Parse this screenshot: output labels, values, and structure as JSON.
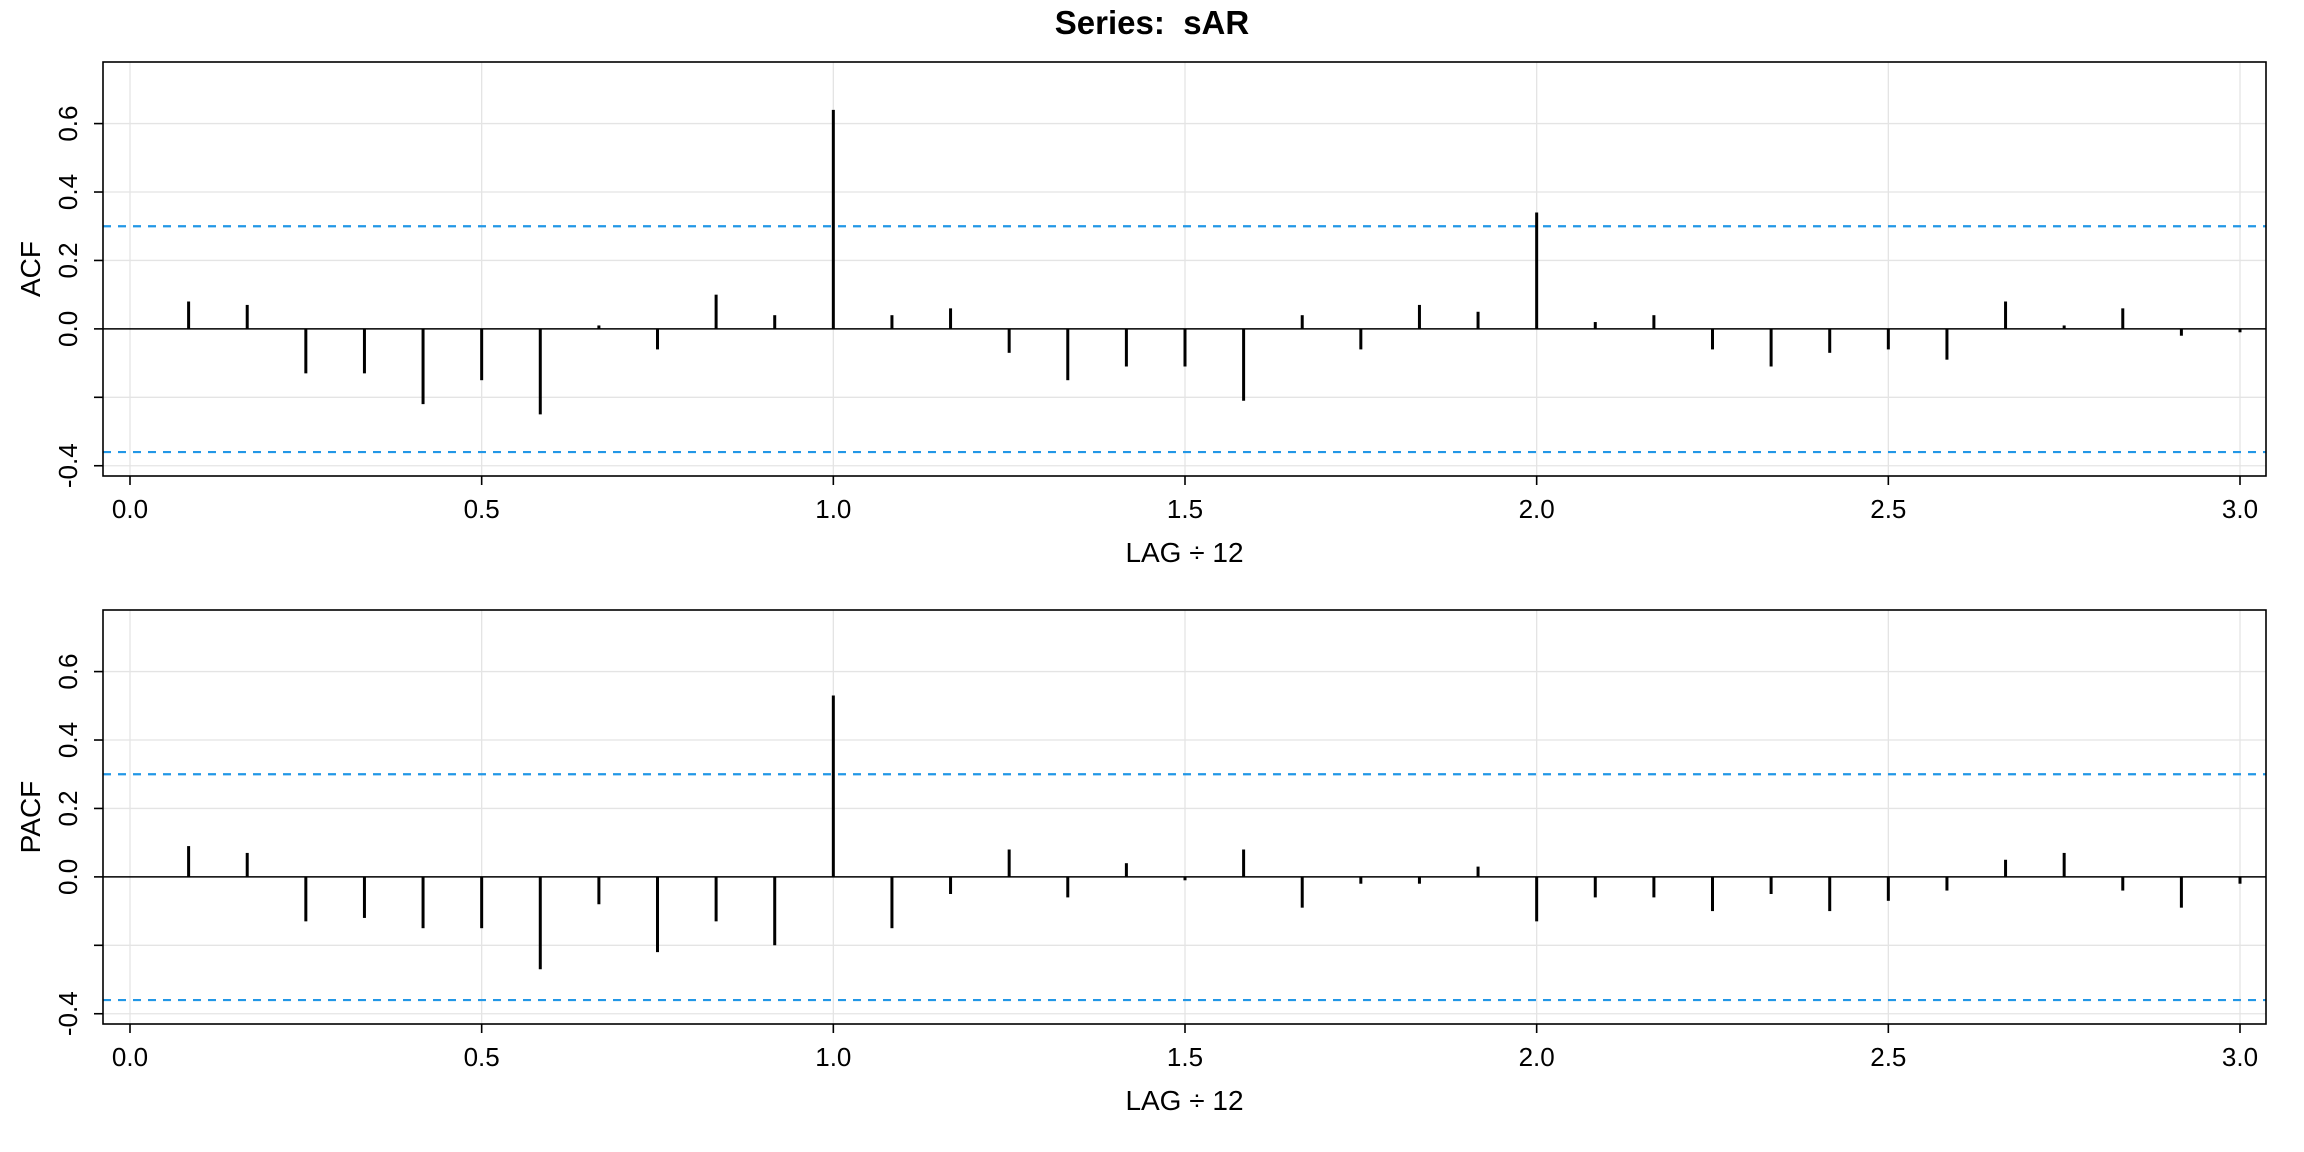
{
  "title": "Series:  sAR",
  "colors": {
    "bar": "#000000",
    "confidence": "#2297E6",
    "grid": "#e4e4e4",
    "axis": "#000000",
    "background": "#ffffff"
  },
  "chart_data": [
    {
      "type": "bar",
      "subtype": "acf-stem-plot",
      "panel": "ACF",
      "ylabel": "ACF",
      "xlabel": "LAG ÷ 12",
      "x_definition": "lag divided by seasonal period 12",
      "xlim": [
        0,
        3.04
      ],
      "ylim": [
        -0.43,
        0.78
      ],
      "xticks": [
        0.0,
        0.5,
        1.0,
        1.5,
        2.0,
        2.5,
        3.0
      ],
      "xtick_labels": [
        "0.0",
        "0.5",
        "1.0",
        "1.5",
        "2.0",
        "2.5",
        "3.0"
      ],
      "ytick_values": [
        0.6,
        0.4,
        0.2,
        0.0,
        -0.2,
        -0.4
      ],
      "ytick_labels": [
        "0.6",
        "0.4",
        "0.2",
        "0.0",
        "",
        "-0.4"
      ],
      "conf_upper": 0.3,
      "conf_lower": -0.36,
      "grid": "on",
      "lags": [
        1,
        2,
        3,
        4,
        5,
        6,
        7,
        8,
        9,
        10,
        11,
        12,
        13,
        14,
        15,
        16,
        17,
        18,
        19,
        20,
        21,
        22,
        23,
        24,
        25,
        26,
        27,
        28,
        29,
        30,
        31,
        32,
        33,
        34,
        35,
        36
      ],
      "values": [
        0.08,
        0.07,
        -0.13,
        -0.13,
        -0.22,
        -0.15,
        -0.25,
        0.01,
        -0.06,
        0.1,
        0.04,
        0.64,
        0.04,
        0.06,
        -0.07,
        -0.15,
        -0.11,
        -0.11,
        -0.21,
        0.04,
        -0.06,
        0.07,
        0.05,
        0.34,
        0.02,
        0.04,
        -0.06,
        -0.11,
        -0.07,
        -0.06,
        -0.09,
        0.08,
        0.01,
        0.06,
        -0.02,
        -0.01
      ]
    },
    {
      "type": "bar",
      "subtype": "acf-stem-plot",
      "panel": "PACF",
      "ylabel": "PACF",
      "xlabel": "LAG ÷ 12",
      "x_definition": "lag divided by seasonal period 12",
      "xlim": [
        0,
        3.04
      ],
      "ylim": [
        -0.43,
        0.78
      ],
      "xticks": [
        0.0,
        0.5,
        1.0,
        1.5,
        2.0,
        2.5,
        3.0
      ],
      "xtick_labels": [
        "0.0",
        "0.5",
        "1.0",
        "1.5",
        "2.0",
        "2.5",
        "3.0"
      ],
      "ytick_values": [
        0.6,
        0.4,
        0.2,
        0.0,
        -0.2,
        -0.4
      ],
      "ytick_labels": [
        "0.6",
        "0.4",
        "0.2",
        "0.0",
        "",
        "-0.4"
      ],
      "conf_upper": 0.3,
      "conf_lower": -0.36,
      "grid": "on",
      "lags": [
        1,
        2,
        3,
        4,
        5,
        6,
        7,
        8,
        9,
        10,
        11,
        12,
        13,
        14,
        15,
        16,
        17,
        18,
        19,
        20,
        21,
        22,
        23,
        24,
        25,
        26,
        27,
        28,
        29,
        30,
        31,
        32,
        33,
        34,
        35,
        36
      ],
      "values": [
        0.09,
        0.07,
        -0.13,
        -0.12,
        -0.15,
        -0.15,
        -0.27,
        -0.08,
        -0.22,
        -0.13,
        -0.2,
        0.53,
        -0.15,
        -0.05,
        0.08,
        -0.06,
        0.04,
        -0.01,
        0.08,
        -0.09,
        -0.02,
        -0.02,
        0.03,
        -0.13,
        -0.06,
        -0.06,
        -0.1,
        -0.05,
        -0.1,
        -0.07,
        -0.04,
        0.05,
        0.07,
        -0.04,
        -0.09,
        -0.02
      ]
    }
  ]
}
